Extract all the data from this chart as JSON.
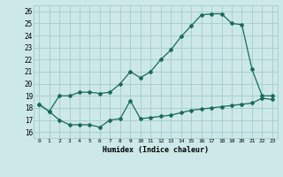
{
  "xlabel": "Humidex (Indice chaleur)",
  "background_color": "#cce8e8",
  "grid_color": "#aacfcf",
  "line_color": "#1a6b5a",
  "xlim": [
    -0.5,
    23.5
  ],
  "ylim": [
    15.5,
    26.5
  ],
  "xticks": [
    0,
    1,
    2,
    3,
    4,
    5,
    6,
    7,
    8,
    9,
    10,
    11,
    12,
    13,
    14,
    15,
    16,
    17,
    18,
    19,
    20,
    21,
    22,
    23
  ],
  "yticks": [
    16,
    17,
    18,
    19,
    20,
    21,
    22,
    23,
    24,
    25,
    26
  ],
  "line1_x": [
    0,
    1,
    2,
    3,
    4,
    5,
    6,
    7,
    8,
    9,
    10,
    11,
    12,
    13,
    14,
    15,
    16,
    17,
    18,
    19,
    20,
    21,
    22,
    23
  ],
  "line1_y": [
    18.3,
    17.7,
    17.0,
    16.6,
    16.6,
    16.6,
    16.4,
    17.0,
    17.1,
    18.6,
    17.1,
    17.2,
    17.3,
    17.4,
    17.6,
    17.8,
    17.9,
    18.0,
    18.1,
    18.2,
    18.3,
    18.4,
    18.8,
    18.7
  ],
  "line2_x": [
    0,
    1,
    2,
    3,
    4,
    5,
    6,
    7,
    8,
    9,
    10,
    11,
    12,
    13,
    14,
    15,
    16,
    17,
    18,
    19,
    20,
    21,
    22,
    23
  ],
  "line2_y": [
    18.3,
    17.7,
    19.0,
    19.0,
    19.3,
    19.3,
    19.2,
    19.3,
    20.0,
    21.0,
    20.5,
    21.0,
    22.0,
    22.8,
    23.9,
    24.8,
    25.7,
    25.8,
    25.8,
    25.0,
    24.9,
    21.2,
    19.0,
    19.0
  ]
}
